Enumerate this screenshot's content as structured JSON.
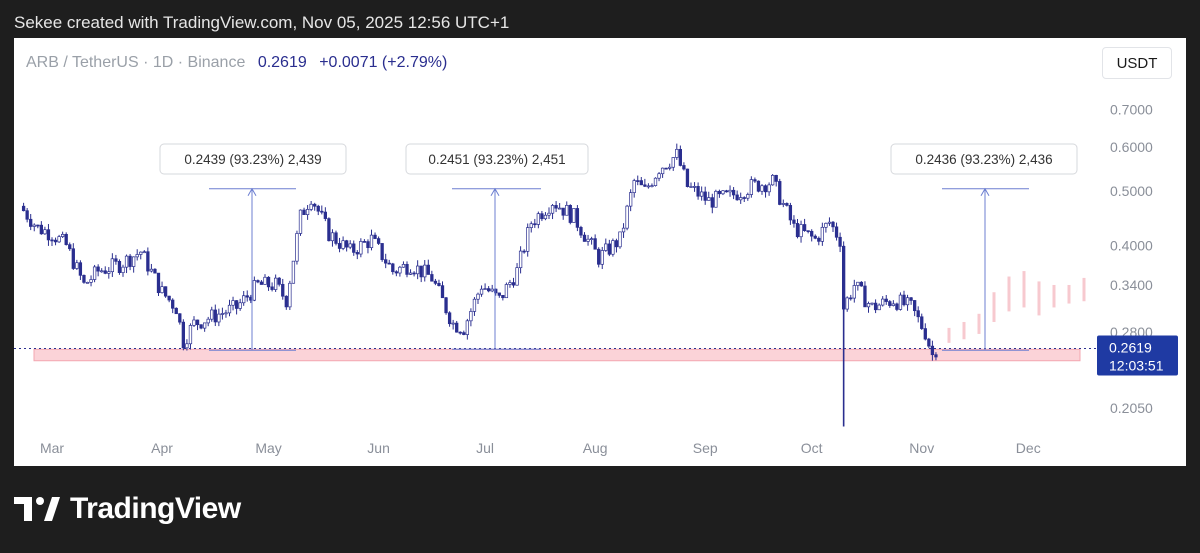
{
  "header": {
    "text": "Sekee created with TradingView.com, Nov 05, 2025 12:56 UTC+1"
  },
  "legend": {
    "symbol": "ARB / TetherUS · 1D · Binance",
    "price": "0.2619",
    "change": "+0.0071 (+2.79%)"
  },
  "currency_button": "USDT",
  "footer": {
    "brand": "TradingView"
  },
  "colors": {
    "candle": "#2a2e8f",
    "support_zone_fill": "#fbd3d8",
    "support_zone_border": "#f3a7b1",
    "measure_line": "#6d7fd1",
    "price_label_bg": "#1f3aa3"
  },
  "chart_data": {
    "type": "line",
    "scale": "log",
    "x_ticks": [
      "Mar",
      "Apr",
      "May",
      "Jun",
      "Jul",
      "Aug",
      "Sep",
      "Oct",
      "Nov",
      "Dec"
    ],
    "y_ticks": [
      "0.7000",
      "0.6000",
      "0.5000",
      "0.4000",
      "0.3400",
      "0.2800",
      "0.2050"
    ],
    "ylim": [
      0.185,
      0.78
    ],
    "current_price_label": {
      "price": "0.2619",
      "countdown": "12:03:51"
    },
    "series": [
      {
        "values": [
          {
            "date": "2025-02-20",
            "close": 0.47
          },
          {
            "date": "2025-02-25",
            "close": 0.43
          },
          {
            "date": "2025-03-01",
            "close": 0.42
          },
          {
            "date": "2025-03-05",
            "close": 0.4
          },
          {
            "date": "2025-03-10",
            "close": 0.34
          },
          {
            "date": "2025-03-14",
            "close": 0.36
          },
          {
            "date": "2025-03-20",
            "close": 0.37
          },
          {
            "date": "2025-03-26",
            "close": 0.39
          },
          {
            "date": "2025-04-01",
            "close": 0.33
          },
          {
            "date": "2025-04-05",
            "close": 0.31
          },
          {
            "date": "2025-04-07",
            "close": 0.27
          },
          {
            "date": "2025-04-10",
            "close": 0.29
          },
          {
            "date": "2025-04-16",
            "close": 0.3
          },
          {
            "date": "2025-04-22",
            "close": 0.31
          },
          {
            "date": "2025-04-28",
            "close": 0.34
          },
          {
            "date": "2025-05-03",
            "close": 0.34
          },
          {
            "date": "2025-05-06",
            "close": 0.32
          },
          {
            "date": "2025-05-10",
            "close": 0.45
          },
          {
            "date": "2025-05-13",
            "close": 0.49
          },
          {
            "date": "2025-05-18",
            "close": 0.42
          },
          {
            "date": "2025-05-24",
            "close": 0.39
          },
          {
            "date": "2025-05-30",
            "close": 0.41
          },
          {
            "date": "2025-06-05",
            "close": 0.36
          },
          {
            "date": "2025-06-10",
            "close": 0.37
          },
          {
            "date": "2025-06-16",
            "close": 0.35
          },
          {
            "date": "2025-06-22",
            "close": 0.29
          },
          {
            "date": "2025-06-25",
            "close": 0.285
          },
          {
            "date": "2025-06-30",
            "close": 0.34
          },
          {
            "date": "2025-07-05",
            "close": 0.32
          },
          {
            "date": "2025-07-10",
            "close": 0.36
          },
          {
            "date": "2025-07-14",
            "close": 0.44
          },
          {
            "date": "2025-07-20",
            "close": 0.48
          },
          {
            "date": "2025-07-26",
            "close": 0.45
          },
          {
            "date": "2025-08-02",
            "close": 0.38
          },
          {
            "date": "2025-08-08",
            "close": 0.41
          },
          {
            "date": "2025-08-12",
            "close": 0.52
          },
          {
            "date": "2025-08-15",
            "close": 0.5
          },
          {
            "date": "2025-08-19",
            "close": 0.55
          },
          {
            "date": "2025-08-24",
            "close": 0.58
          },
          {
            "date": "2025-08-27",
            "close": 0.51
          },
          {
            "date": "2025-09-02",
            "close": 0.48
          },
          {
            "date": "2025-09-08",
            "close": 0.49
          },
          {
            "date": "2025-09-14",
            "close": 0.51
          },
          {
            "date": "2025-09-20",
            "close": 0.52
          },
          {
            "date": "2025-09-26",
            "close": 0.43
          },
          {
            "date": "2025-10-02",
            "close": 0.41
          },
          {
            "date": "2025-10-06",
            "close": 0.44
          },
          {
            "date": "2025-10-09",
            "close": 0.41
          },
          {
            "date": "2025-10-10",
            "close": 0.31
          },
          {
            "date": "2025-10-13",
            "close": 0.34
          },
          {
            "date": "2025-10-18",
            "close": 0.31
          },
          {
            "date": "2025-10-24",
            "close": 0.32
          },
          {
            "date": "2025-10-29",
            "close": 0.31
          },
          {
            "date": "2025-11-02",
            "close": 0.28
          },
          {
            "date": "2025-11-04",
            "close": 0.255
          },
          {
            "date": "2025-11-05",
            "close": 0.2619
          }
        ]
      }
    ],
    "annotations": [
      {
        "text": "0.2439 (93.23%) 2,439"
      },
      {
        "text": "0.2451 (93.23%) 2,451"
      },
      {
        "text": "0.2436 (93.23%) 2,436"
      }
    ],
    "support_zone": {
      "low": 0.249,
      "high": 0.261
    },
    "projection": {
      "low": 0.275,
      "high": 0.355
    },
    "wick_low": 0.19
  }
}
